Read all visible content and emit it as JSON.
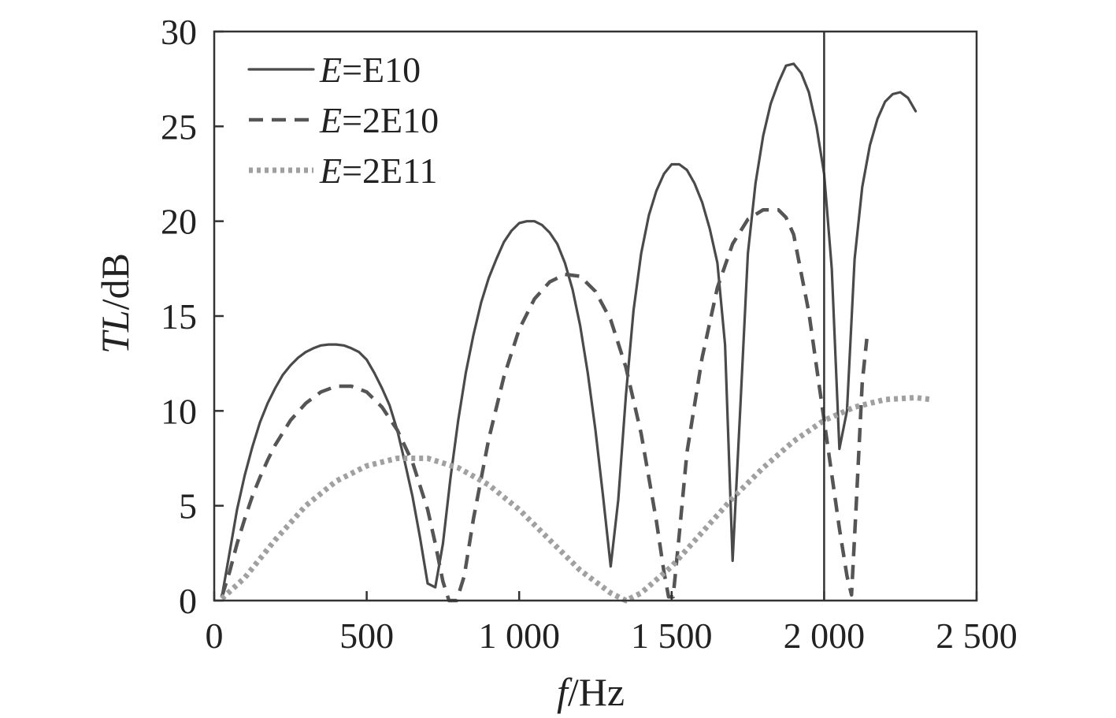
{
  "chart_data": {
    "type": "line",
    "xlabel_italic": "f",
    "xlabel_rest": "/Hz",
    "ylabel_italic": "TL",
    "ylabel_rest": "/dB",
    "xlim": [
      0,
      2500
    ],
    "ylim": [
      0,
      30
    ],
    "xticks": [
      {
        "value": 0,
        "label": "0"
      },
      {
        "value": 500,
        "label": "500"
      },
      {
        "value": 1000,
        "label": "1 000"
      },
      {
        "value": 1500,
        "label": "1 500"
      },
      {
        "value": 2000,
        "label": "2 000"
      },
      {
        "value": 2500,
        "label": "2 500"
      }
    ],
    "yticks": [
      {
        "value": 0,
        "label": "0"
      },
      {
        "value": 5,
        "label": "5"
      },
      {
        "value": 10,
        "label": "10"
      },
      {
        "value": 15,
        "label": "15"
      },
      {
        "value": 20,
        "label": "20"
      },
      {
        "value": 25,
        "label": "25"
      },
      {
        "value": 30,
        "label": "30"
      }
    ],
    "grid": false,
    "legend_position": "top-left",
    "vertical_marker_x": 2000,
    "series": [
      {
        "name_italic": "E",
        "name_rest": "=E10",
        "style": "solid",
        "color": "#4a4a4a",
        "points": [
          [
            25,
            0.2
          ],
          [
            50,
            2.5
          ],
          [
            75,
            4.8
          ],
          [
            100,
            6.6
          ],
          [
            125,
            8.1
          ],
          [
            150,
            9.4
          ],
          [
            175,
            10.4
          ],
          [
            200,
            11.2
          ],
          [
            225,
            11.9
          ],
          [
            250,
            12.4
          ],
          [
            275,
            12.8
          ],
          [
            300,
            13.1
          ],
          [
            325,
            13.3
          ],
          [
            350,
            13.45
          ],
          [
            375,
            13.5
          ],
          [
            400,
            13.5
          ],
          [
            425,
            13.45
          ],
          [
            450,
            13.3
          ],
          [
            475,
            13.1
          ],
          [
            500,
            12.7
          ],
          [
            525,
            12.0
          ],
          [
            550,
            11.2
          ],
          [
            575,
            10.3
          ],
          [
            600,
            9.0
          ],
          [
            625,
            7.3
          ],
          [
            650,
            5.5
          ],
          [
            675,
            3.3
          ],
          [
            700,
            0.9
          ],
          [
            725,
            0.7
          ],
          [
            750,
            3.0
          ],
          [
            775,
            6.5
          ],
          [
            800,
            9.5
          ],
          [
            825,
            12.0
          ],
          [
            850,
            14.0
          ],
          [
            875,
            15.7
          ],
          [
            900,
            17.0
          ],
          [
            925,
            18.0
          ],
          [
            950,
            18.9
          ],
          [
            975,
            19.5
          ],
          [
            1000,
            19.9
          ],
          [
            1025,
            20.0
          ],
          [
            1050,
            20.0
          ],
          [
            1075,
            19.8
          ],
          [
            1100,
            19.4
          ],
          [
            1125,
            18.8
          ],
          [
            1150,
            17.8
          ],
          [
            1175,
            16.4
          ],
          [
            1200,
            14.5
          ],
          [
            1225,
            12.0
          ],
          [
            1250,
            9.0
          ],
          [
            1275,
            5.5
          ],
          [
            1300,
            1.8
          ],
          [
            1325,
            5.3
          ],
          [
            1350,
            10.8
          ],
          [
            1375,
            15.3
          ],
          [
            1400,
            18.3
          ],
          [
            1425,
            20.3
          ],
          [
            1450,
            21.6
          ],
          [
            1475,
            22.5
          ],
          [
            1500,
            23.0
          ],
          [
            1525,
            23.0
          ],
          [
            1550,
            22.7
          ],
          [
            1575,
            22.0
          ],
          [
            1600,
            21.0
          ],
          [
            1625,
            19.6
          ],
          [
            1650,
            17.8
          ],
          [
            1675,
            13.5
          ],
          [
            1700,
            2.1
          ],
          [
            1725,
            10.1
          ],
          [
            1750,
            18.3
          ],
          [
            1775,
            22.0
          ],
          [
            1800,
            24.5
          ],
          [
            1825,
            26.2
          ],
          [
            1850,
            27.3
          ],
          [
            1875,
            28.2
          ],
          [
            1900,
            28.3
          ],
          [
            1925,
            27.8
          ],
          [
            1950,
            26.8
          ],
          [
            1975,
            25.0
          ],
          [
            2000,
            22.5
          ],
          [
            2025,
            17.5
          ],
          [
            2050,
            8.0
          ],
          [
            2075,
            10.0
          ],
          [
            2100,
            18.0
          ],
          [
            2125,
            21.8
          ],
          [
            2150,
            24.0
          ],
          [
            2175,
            25.4
          ],
          [
            2200,
            26.3
          ],
          [
            2225,
            26.7
          ],
          [
            2250,
            26.8
          ],
          [
            2275,
            26.5
          ],
          [
            2300,
            25.8
          ]
        ]
      },
      {
        "name_italic": "E",
        "name_rest": "=2E10",
        "style": "dashed",
        "color": "#555555",
        "points": [
          [
            25,
            0.2
          ],
          [
            50,
            1.5
          ],
          [
            75,
            3.0
          ],
          [
            100,
            4.3
          ],
          [
            125,
            5.5
          ],
          [
            150,
            6.5
          ],
          [
            175,
            7.4
          ],
          [
            200,
            8.2
          ],
          [
            250,
            9.5
          ],
          [
            300,
            10.4
          ],
          [
            350,
            11.0
          ],
          [
            400,
            11.3
          ],
          [
            450,
            11.3
          ],
          [
            500,
            11.0
          ],
          [
            550,
            10.2
          ],
          [
            600,
            9.0
          ],
          [
            650,
            7.3
          ],
          [
            700,
            4.8
          ],
          [
            725,
            3.0
          ],
          [
            750,
            1.0
          ],
          [
            770,
            0.0
          ],
          [
            795,
            0.0
          ],
          [
            820,
            1.3
          ],
          [
            850,
            4.3
          ],
          [
            900,
            8.5
          ],
          [
            950,
            11.8
          ],
          [
            1000,
            14.3
          ],
          [
            1050,
            15.9
          ],
          [
            1100,
            16.8
          ],
          [
            1150,
            17.2
          ],
          [
            1200,
            17.1
          ],
          [
            1250,
            16.3
          ],
          [
            1300,
            14.8
          ],
          [
            1350,
            12.3
          ],
          [
            1400,
            8.8
          ],
          [
            1450,
            4.2
          ],
          [
            1475,
            1.5
          ],
          [
            1490,
            0.2
          ],
          [
            1505,
            0.2
          ],
          [
            1525,
            3.5
          ],
          [
            1550,
            7.8
          ],
          [
            1600,
            12.8
          ],
          [
            1650,
            16.5
          ],
          [
            1700,
            18.8
          ],
          [
            1750,
            20.1
          ],
          [
            1800,
            20.6
          ],
          [
            1850,
            20.6
          ],
          [
            1875,
            20.2
          ],
          [
            1900,
            19.3
          ],
          [
            1950,
            15.2
          ],
          [
            2000,
            9.5
          ],
          [
            2050,
            3.8
          ],
          [
            2075,
            1.3
          ],
          [
            2090,
            0.3
          ],
          [
            2105,
            5.0
          ],
          [
            2125,
            11.5
          ],
          [
            2140,
            13.8
          ]
        ]
      },
      {
        "name_italic": "E",
        "name_rest": "=2E11",
        "style": "dotted",
        "color": "#a0a0a0",
        "points": [
          [
            25,
            0.1
          ],
          [
            100,
            1.2
          ],
          [
            200,
            3.2
          ],
          [
            300,
            5.0
          ],
          [
            400,
            6.3
          ],
          [
            500,
            7.1
          ],
          [
            600,
            7.5
          ],
          [
            700,
            7.5
          ],
          [
            800,
            7.0
          ],
          [
            900,
            6.1
          ],
          [
            1000,
            4.8
          ],
          [
            1100,
            3.2
          ],
          [
            1200,
            1.6
          ],
          [
            1300,
            0.4
          ],
          [
            1350,
            0.0
          ],
          [
            1400,
            0.4
          ],
          [
            1500,
            1.8
          ],
          [
            1600,
            3.6
          ],
          [
            1700,
            5.4
          ],
          [
            1800,
            7.0
          ],
          [
            1900,
            8.4
          ],
          [
            2000,
            9.5
          ],
          [
            2100,
            10.2
          ],
          [
            2200,
            10.6
          ],
          [
            2300,
            10.7
          ],
          [
            2350,
            10.6
          ]
        ]
      }
    ]
  }
}
